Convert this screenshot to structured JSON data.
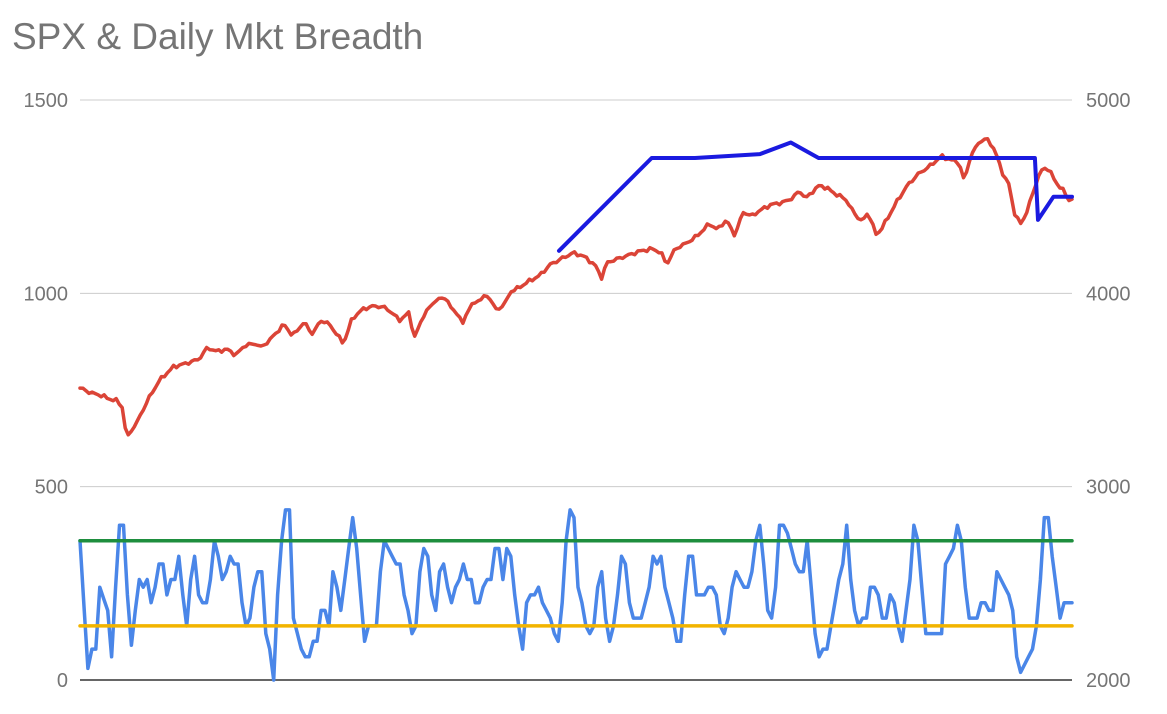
{
  "chart_data": {
    "type": "line",
    "title": "SPX & Daily Mkt Breadth",
    "xlabel": "",
    "ylabel_left": "",
    "ylabel_right": "",
    "x_axis_labels": "none",
    "n_points": 330,
    "grid": true,
    "legend": "none",
    "left_axis": {
      "ylim": [
        0,
        1500
      ],
      "ticks": [
        "0",
        "500",
        "1000",
        "1500"
      ]
    },
    "right_axis": {
      "ylim": [
        2000,
        5000
      ],
      "ticks": [
        "2000",
        "3000",
        "4000",
        "5000"
      ]
    },
    "series": [
      {
        "axis": "right",
        "color": "#db4437",
        "width": 3.5,
        "anchors": [
          [
            0,
            3510
          ],
          [
            4,
            3485
          ],
          [
            8,
            3470
          ],
          [
            10,
            3455
          ],
          [
            13,
            3445
          ],
          [
            15,
            3410
          ],
          [
            16,
            3300
          ],
          [
            17,
            3260
          ],
          [
            18,
            3290
          ],
          [
            20,
            3330
          ],
          [
            24,
            3450
          ],
          [
            28,
            3550
          ],
          [
            33,
            3620
          ],
          [
            38,
            3640
          ],
          [
            42,
            3660
          ],
          [
            45,
            3720
          ],
          [
            48,
            3700
          ],
          [
            52,
            3710
          ],
          [
            55,
            3680
          ],
          [
            58,
            3730
          ],
          [
            62,
            3740
          ],
          [
            64,
            3720
          ],
          [
            67,
            3760
          ],
          [
            72,
            3840
          ],
          [
            75,
            3780
          ],
          [
            79,
            3850
          ],
          [
            82,
            3790
          ],
          [
            85,
            3860
          ],
          [
            88,
            3840
          ],
          [
            91,
            3780
          ],
          [
            93,
            3740
          ],
          [
            96,
            3870
          ],
          [
            100,
            3920
          ],
          [
            104,
            3935
          ],
          [
            108,
            3925
          ],
          [
            111,
            3885
          ],
          [
            113,
            3860
          ],
          [
            116,
            3900
          ],
          [
            118,
            3770
          ],
          [
            121,
            3880
          ],
          [
            125,
            3960
          ],
          [
            129,
            3980
          ],
          [
            131,
            3920
          ],
          [
            133,
            3900
          ],
          [
            135,
            3840
          ],
          [
            137,
            3920
          ],
          [
            140,
            3960
          ],
          [
            144,
            3990
          ],
          [
            147,
            3910
          ],
          [
            150,
            3950
          ],
          [
            152,
            4010
          ],
          [
            155,
            4030
          ],
          [
            158,
            4060
          ],
          [
            162,
            4090
          ],
          [
            166,
            4150
          ],
          [
            170,
            4180
          ],
          [
            174,
            4210
          ],
          [
            178,
            4190
          ],
          [
            182,
            4140
          ],
          [
            184,
            4080
          ],
          [
            186,
            4160
          ],
          [
            190,
            4180
          ],
          [
            194,
            4200
          ],
          [
            198,
            4220
          ],
          [
            202,
            4230
          ],
          [
            205,
            4210
          ],
          [
            207,
            4150
          ],
          [
            210,
            4230
          ],
          [
            214,
            4260
          ],
          [
            218,
            4300
          ],
          [
            222,
            4360
          ],
          [
            225,
            4330
          ],
          [
            228,
            4380
          ],
          [
            231,
            4300
          ],
          [
            234,
            4420
          ],
          [
            237,
            4400
          ],
          [
            240,
            4430
          ],
          [
            244,
            4460
          ],
          [
            248,
            4470
          ],
          [
            251,
            4490
          ],
          [
            254,
            4530
          ],
          [
            256,
            4490
          ],
          [
            258,
            4520
          ],
          [
            261,
            4560
          ],
          [
            264,
            4540
          ],
          [
            267,
            4510
          ],
          [
            270,
            4490
          ],
          [
            272,
            4440
          ],
          [
            274,
            4400
          ],
          [
            276,
            4370
          ],
          [
            278,
            4420
          ],
          [
            281,
            4300
          ],
          [
            283,
            4340
          ],
          [
            285,
            4390
          ],
          [
            288,
            4470
          ],
          [
            292,
            4560
          ],
          [
            296,
            4620
          ],
          [
            300,
            4660
          ],
          [
            304,
            4710
          ],
          [
            307,
            4690
          ],
          [
            310,
            4680
          ],
          [
            312,
            4580
          ],
          [
            314,
            4700
          ],
          [
            317,
            4780
          ],
          [
            320,
            4800
          ],
          [
            322,
            4760
          ],
          [
            324,
            4690
          ],
          [
            326,
            4600
          ],
          [
            328,
            4560
          ],
          [
            329,
            4460
          ],
          [
            330,
            4400
          ],
          [
            332,
            4360
          ],
          [
            334,
            4420
          ],
          [
            336,
            4510
          ],
          [
            338,
            4600
          ],
          [
            340,
            4650
          ],
          [
            342,
            4640
          ],
          [
            344,
            4580
          ],
          [
            347,
            4530
          ],
          [
            349,
            4480
          ],
          [
            350,
            4490
          ]
        ]
      },
      {
        "axis": "right",
        "color": "#1a1ae0",
        "width": 4,
        "points": [
          [
            3100,
            4220
          ],
          [
            3700,
            4700
          ],
          [
            3980,
            4700
          ],
          [
            4400,
            4720
          ],
          [
            4600,
            4780
          ],
          [
            4780,
            4700
          ],
          [
            5070,
            4700
          ],
          [
            5250,
            4700
          ],
          [
            5300,
            4700
          ],
          [
            5420,
            4700
          ],
          [
            5650,
            4700
          ],
          [
            5900,
            4700
          ],
          [
            6060,
            4700
          ],
          [
            6160,
            4700
          ],
          [
            6180,
            4700
          ],
          [
            6200,
            4380
          ],
          [
            6300,
            4500
          ],
          [
            6380,
            4500
          ],
          [
            6420,
            4500
          ],
          [
            6420,
            4500
          ]
        ]
      },
      {
        "axis": "left",
        "color": "#4a86e8",
        "width": 3.5,
        "values": [
          360,
          190,
          30,
          80,
          80,
          240,
          210,
          180,
          60,
          240,
          400,
          400,
          220,
          90,
          180,
          260,
          240,
          260,
          200,
          240,
          300,
          300,
          220,
          260,
          260,
          320,
          220,
          140,
          260,
          320,
          220,
          200,
          200,
          260,
          360,
          320,
          260,
          280,
          320,
          300,
          300,
          200,
          140,
          160,
          240,
          280,
          280,
          120,
          80,
          0,
          220,
          360,
          440,
          440,
          160,
          120,
          80,
          60,
          60,
          100,
          100,
          180,
          180,
          140,
          280,
          240,
          180,
          260,
          340,
          420,
          340,
          220,
          100,
          140,
          140,
          140,
          280,
          360,
          340,
          320,
          300,
          300,
          220,
          180,
          120,
          140,
          280,
          340,
          320,
          220,
          180,
          280,
          300,
          240,
          200,
          240,
          260,
          300,
          260,
          260,
          200,
          200,
          240,
          260,
          260,
          340,
          340,
          260,
          340,
          320,
          220,
          140,
          80,
          200,
          220,
          220,
          240,
          200,
          180,
          160,
          120,
          100,
          200,
          360,
          440,
          420,
          240,
          200,
          140,
          120,
          140,
          240,
          280,
          160,
          100,
          140,
          220,
          320,
          300,
          200,
          160,
          160,
          160,
          200,
          240,
          320,
          300,
          320,
          240,
          200,
          160,
          100,
          100,
          220,
          320,
          320,
          220,
          220,
          220,
          240,
          240,
          220,
          140,
          120,
          160,
          240,
          280,
          260,
          240,
          240,
          280,
          360,
          400,
          300,
          180,
          160,
          240,
          400,
          400,
          380,
          340,
          300,
          280,
          280,
          360,
          240,
          120,
          60,
          80,
          80,
          140,
          200,
          260,
          300,
          400,
          260,
          180,
          140,
          160,
          160,
          240,
          240,
          220,
          160,
          160,
          220,
          200,
          140,
          100,
          180,
          260,
          400,
          360,
          240,
          120,
          120,
          120,
          120,
          120,
          300,
          320,
          340,
          400,
          360,
          240,
          160,
          160,
          160,
          200,
          200,
          180,
          180,
          280,
          260,
          240,
          220,
          180,
          60,
          20,
          40,
          60,
          80,
          140,
          260,
          420,
          420,
          320,
          240,
          160,
          200,
          200,
          200
        ]
      },
      {
        "axis": "left",
        "color": "#1e8e3e",
        "width": 3.5,
        "constant": 360
      },
      {
        "axis": "left",
        "color": "#f2b400",
        "width": 3.5,
        "constant": 140
      }
    ]
  }
}
